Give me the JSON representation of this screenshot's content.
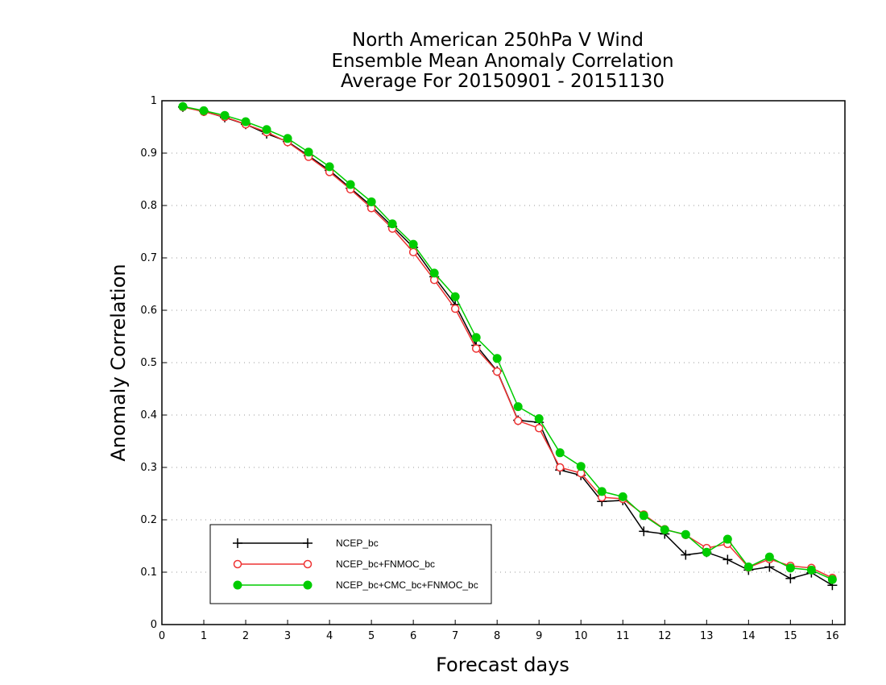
{
  "chart_data": {
    "type": "line",
    "title_lines": [
      "North American 250hPa V Wind",
      "Ensemble Mean Anomaly Correlation",
      "Average For 20150901 - 20151130"
    ],
    "xlabel": "Forecast days",
    "ylabel": "Anomaly Correlation",
    "xlim": [
      0,
      16.3
    ],
    "ylim": [
      0,
      1
    ],
    "xticks": [
      "0",
      "1",
      "2",
      "3",
      "4",
      "5",
      "6",
      "7",
      "8",
      "9",
      "10",
      "11",
      "12",
      "13",
      "14",
      "15",
      "16"
    ],
    "yticks": [
      "0",
      "0.1",
      "0.2",
      "0.3",
      "0.4",
      "0.5",
      "0.6",
      "0.7",
      "0.8",
      "0.9",
      "1"
    ],
    "grid": "horizontal dotted",
    "legend_position": "bottom-left",
    "x": [
      0.5,
      1,
      1.5,
      2,
      2.5,
      3,
      3.5,
      4,
      4.5,
      5,
      5.5,
      6,
      6.5,
      7,
      7.5,
      8,
      8.5,
      9,
      9.5,
      10,
      10.5,
      11,
      11.5,
      12,
      12.5,
      13,
      13.5,
      14,
      14.5,
      15,
      15.5,
      16
    ],
    "series": [
      {
        "name": "NCEP_bc",
        "color": "#000000",
        "marker": "plus",
        "values": [
          0.988,
          0.98,
          0.968,
          0.955,
          0.937,
          0.922,
          0.895,
          0.867,
          0.833,
          0.799,
          0.76,
          0.72,
          0.664,
          0.611,
          0.533,
          0.484,
          0.39,
          0.386,
          0.295,
          0.285,
          0.235,
          0.237,
          0.178,
          0.173,
          0.133,
          0.138,
          0.124,
          0.104,
          0.11,
          0.088,
          0.099,
          0.075
        ]
      },
      {
        "name": "NCEP_bc+FNMOC_bc",
        "color": "#ee3333",
        "marker": "open-circle",
        "values": [
          0.988,
          0.979,
          0.969,
          0.955,
          0.94,
          0.921,
          0.893,
          0.864,
          0.831,
          0.795,
          0.756,
          0.711,
          0.658,
          0.603,
          0.527,
          0.483,
          0.389,
          0.375,
          0.3,
          0.289,
          0.243,
          0.24,
          0.21,
          0.182,
          0.171,
          0.146,
          0.154,
          0.109,
          0.125,
          0.112,
          0.108,
          0.089
        ]
      },
      {
        "name": "NCEP_bc+CMC_bc+FNMOC_bc",
        "color": "#00cc00",
        "marker": "filled-circle",
        "values": [
          0.989,
          0.981,
          0.972,
          0.96,
          0.945,
          0.928,
          0.902,
          0.874,
          0.84,
          0.807,
          0.765,
          0.726,
          0.671,
          0.626,
          0.548,
          0.508,
          0.416,
          0.393,
          0.328,
          0.302,
          0.254,
          0.244,
          0.208,
          0.181,
          0.172,
          0.138,
          0.163,
          0.11,
          0.129,
          0.108,
          0.104,
          0.086
        ]
      }
    ]
  }
}
